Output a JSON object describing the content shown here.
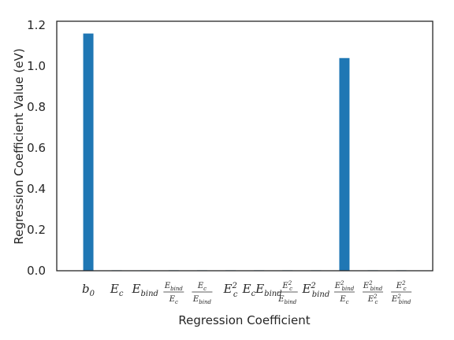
{
  "chart_data": {
    "type": "bar",
    "title": "",
    "xlabel": "Regression Coefficient",
    "ylabel": "Regression Coefficient Value (eV)",
    "ylim": [
      0,
      1.22
    ],
    "yticks": [
      "0.0",
      "0.2",
      "0.4",
      "0.6",
      "0.8",
      "1.0",
      "1.2"
    ],
    "grid": false,
    "bar_color": "#1f77b4",
    "categories": [
      "b_0",
      "E_c",
      "E_bind",
      "E_bind/E_c",
      "E_c/E_bind",
      "E_c^2",
      "E_c E_bind",
      "E_c^2/E_bind",
      "E_bind^2",
      "E_bind^2/E_c",
      "E_bind^2/E_c^2",
      "E_c^2/E_bind^2"
    ],
    "values": [
      1.16,
      0,
      0,
      0,
      0,
      0,
      0,
      0,
      0,
      1.04,
      0,
      0
    ]
  }
}
